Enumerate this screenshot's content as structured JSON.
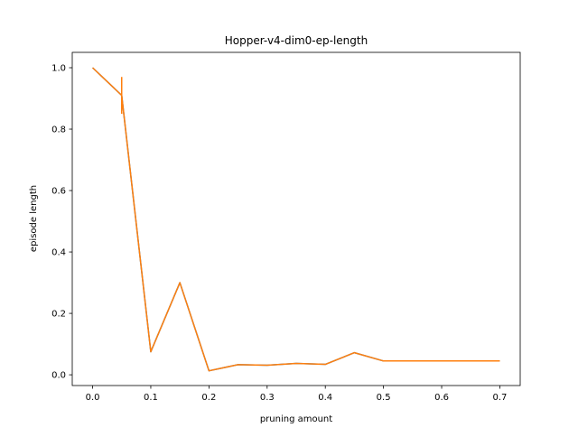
{
  "chart_data": {
    "type": "line",
    "title": "Hopper-v4-dim0-ep-length",
    "xlabel": "pruning amount",
    "ylabel": "episode length",
    "xlim": [
      -0.035,
      0.735
    ],
    "ylim": [
      -0.035,
      1.05
    ],
    "xticks": [
      0.0,
      0.1,
      0.2,
      0.3,
      0.4,
      0.5,
      0.6,
      0.7
    ],
    "xtick_labels": [
      "0.0",
      "0.1",
      "0.2",
      "0.3",
      "0.4",
      "0.5",
      "0.6",
      "0.7"
    ],
    "yticks": [
      0.0,
      0.2,
      0.4,
      0.6,
      0.8,
      1.0
    ],
    "ytick_labels": [
      "0.0",
      "0.2",
      "0.4",
      "0.6",
      "0.8",
      "1.0"
    ],
    "grid": false,
    "series": [
      {
        "color": "#1f77b4",
        "x": [
          0.0,
          0.05,
          0.1,
          0.15,
          0.2,
          0.25,
          0.3,
          0.35,
          0.4,
          0.45,
          0.5,
          0.55,
          0.6,
          0.65,
          0.7
        ],
        "y": [
          1.0,
          0.91,
          0.075,
          0.3,
          0.013,
          0.033,
          0.031,
          0.037,
          0.034,
          0.072,
          0.045,
          0.045,
          0.045,
          0.045,
          0.045
        ]
      },
      {
        "color": "#ff7f0e",
        "x": [
          0.0,
          0.05,
          0.1,
          0.15,
          0.2,
          0.25,
          0.3,
          0.35,
          0.4,
          0.45,
          0.5,
          0.55,
          0.6,
          0.65,
          0.7
        ],
        "y": [
          1.0,
          0.91,
          0.075,
          0.3,
          0.013,
          0.033,
          0.031,
          0.037,
          0.034,
          0.072,
          0.045,
          0.045,
          0.045,
          0.045,
          0.045
        ]
      }
    ],
    "error_bars": [
      {
        "x": 0.05,
        "low": 0.85,
        "high": 0.97,
        "color": "#ff7f0e"
      }
    ]
  }
}
